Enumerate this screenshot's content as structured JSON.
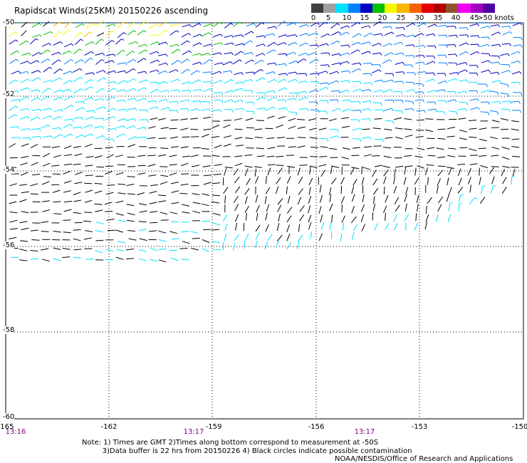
{
  "title": "Rapidscat Winds(25KM) 20150226 ascending",
  "legend": {
    "colors": [
      "#404040",
      "#a0a0a0",
      "#00e0ff",
      "#0080ff",
      "#0000c0",
      "#00c000",
      "#f8f800",
      "#f8b800",
      "#f86000",
      "#e00000",
      "#b00000",
      "#905030",
      "#f000f0",
      "#a000c0",
      "#5000a0"
    ],
    "labels": [
      "0",
      "5",
      "10",
      "15",
      "20",
      "25",
      "30",
      "35",
      "40",
      "45",
      ">50 knots"
    ]
  },
  "map": {
    "lat_labels": [
      "-50",
      "-52",
      "-54",
      "-56",
      "-58",
      "-60"
    ],
    "lon_labels": [
      "-165",
      "-162",
      "-159",
      "-156",
      "-153",
      "-150"
    ],
    "time_labels": [
      "13:16",
      "13:17",
      "13:17"
    ],
    "lat_range": [
      -60,
      -50
    ],
    "lon_range": [
      -165,
      -150
    ]
  },
  "note": "Note: 1) Times are GMT 2)Times along bottom correspond to measurement at -50S\n         3)Data buffer is 22 hrs from 20150226 4) Black circles indicate possible contamination",
  "credit": "NOAA/NESDIS/Office of Research and Applications"
}
